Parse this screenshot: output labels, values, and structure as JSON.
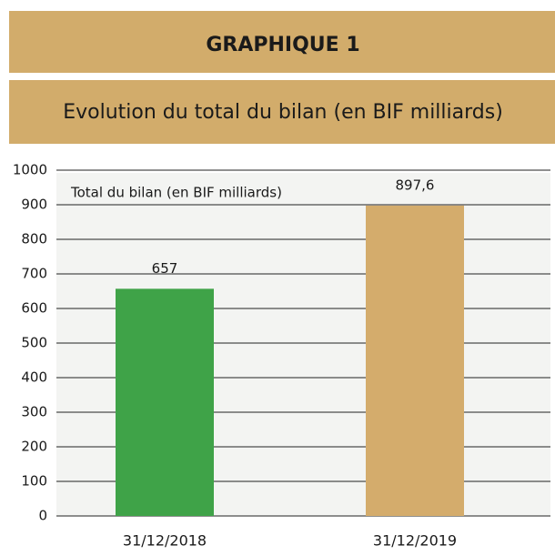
{
  "chart_data": {
    "type": "bar",
    "title": "GRAPHIQUE 1",
    "subtitle": "Evolution du total du bilan (en BIF milliards)",
    "categories": [
      "31/12/2018",
      "31/12/2019"
    ],
    "series": [
      {
        "name": "Total du bilan (en BIF milliards)",
        "colors": [
          "#3fa348",
          "#d4ac6c"
        ],
        "values": [
          657,
          897.6
        ],
        "value_labels": [
          "657",
          "897,6"
        ]
      }
    ],
    "ylim": [
      0,
      1000
    ],
    "yticks": [
      0,
      100,
      200,
      300,
      400,
      500,
      600,
      700,
      800,
      900,
      1000
    ],
    "grid": true
  }
}
